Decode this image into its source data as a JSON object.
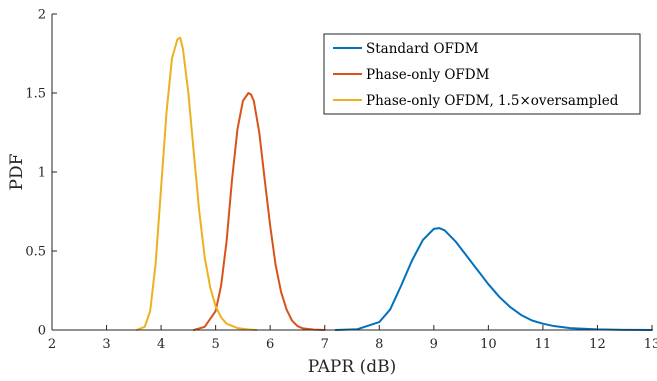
{
  "chart_data": {
    "type": "line",
    "title": "",
    "xlabel": "PAPR (dB)",
    "ylabel": "PDF",
    "xlim": [
      2,
      13
    ],
    "ylim": [
      0,
      2
    ],
    "xticks": [
      2,
      3,
      4,
      5,
      6,
      7,
      8,
      9,
      10,
      11,
      12,
      13
    ],
    "yticks": [
      0,
      0.5,
      1,
      1.5,
      2
    ],
    "xtick_labels": [
      "2",
      "3",
      "4",
      "5",
      "6",
      "7",
      "8",
      "9",
      "10",
      "11",
      "12",
      "13"
    ],
    "ytick_labels": [
      "0",
      "0.5",
      "1",
      "1.5",
      "2"
    ],
    "grid": false,
    "legend_position": "top-right",
    "series": [
      {
        "name": "Standard OFDM",
        "color": "#0072BD",
        "x": [
          7.2,
          7.6,
          8.0,
          8.2,
          8.4,
          8.6,
          8.8,
          9.0,
          9.1,
          9.2,
          9.4,
          9.6,
          9.8,
          10.0,
          10.2,
          10.4,
          10.6,
          10.8,
          11.0,
          11.2,
          11.5,
          12.0,
          12.5,
          13.0
        ],
        "values": [
          0.0,
          0.005,
          0.05,
          0.13,
          0.28,
          0.44,
          0.57,
          0.64,
          0.645,
          0.63,
          0.56,
          0.47,
          0.38,
          0.29,
          0.21,
          0.145,
          0.095,
          0.06,
          0.04,
          0.025,
          0.012,
          0.004,
          0.001,
          0.0
        ]
      },
      {
        "name": "Phase-only OFDM",
        "color": "#D95319",
        "x": [
          4.6,
          4.8,
          5.0,
          5.1,
          5.2,
          5.3,
          5.4,
          5.5,
          5.6,
          5.65,
          5.7,
          5.8,
          5.9,
          6.0,
          6.1,
          6.2,
          6.3,
          6.4,
          6.5,
          6.6,
          6.8,
          7.0
        ],
        "values": [
          0.0,
          0.02,
          0.12,
          0.28,
          0.56,
          0.95,
          1.27,
          1.45,
          1.5,
          1.49,
          1.45,
          1.25,
          0.95,
          0.66,
          0.41,
          0.24,
          0.13,
          0.06,
          0.025,
          0.01,
          0.002,
          0.0
        ]
      },
      {
        "name": "Phase-only OFDM, 1.5×oversampled",
        "color": "#EDB120",
        "x": [
          3.55,
          3.7,
          3.8,
          3.9,
          4.0,
          4.1,
          4.2,
          4.3,
          4.35,
          4.4,
          4.5,
          4.6,
          4.7,
          4.8,
          4.9,
          5.0,
          5.1,
          5.2,
          5.4,
          5.6,
          5.75
        ],
        "values": [
          0.0,
          0.02,
          0.12,
          0.42,
          0.9,
          1.38,
          1.72,
          1.84,
          1.85,
          1.78,
          1.5,
          1.12,
          0.75,
          0.46,
          0.27,
          0.15,
          0.08,
          0.04,
          0.012,
          0.003,
          0.0
        ]
      }
    ]
  }
}
